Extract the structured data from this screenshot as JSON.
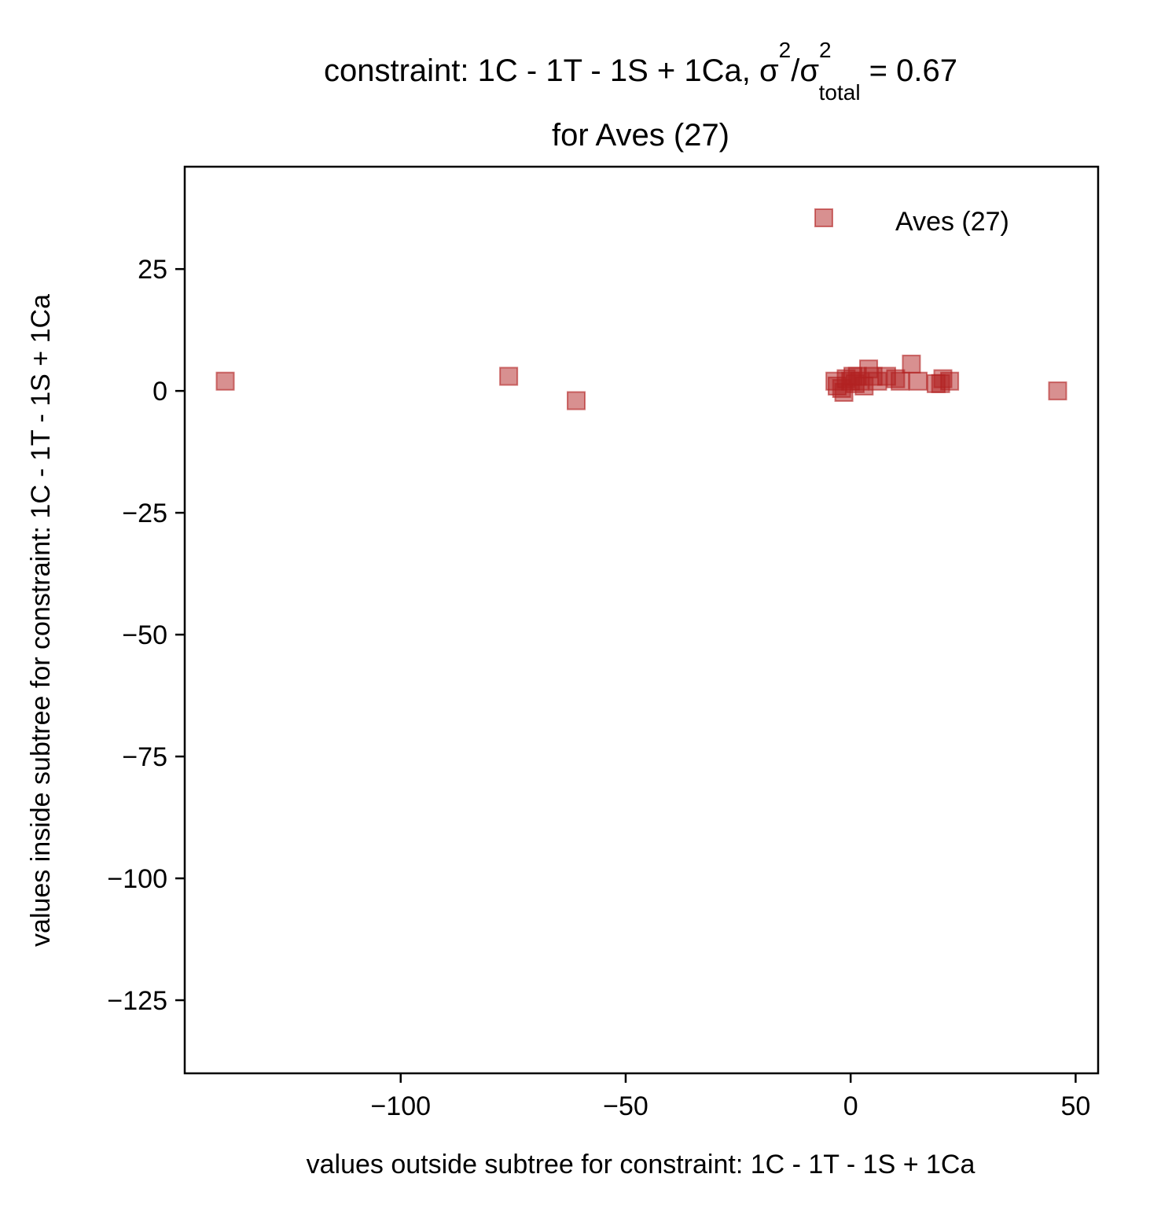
{
  "chart_data": {
    "type": "scatter",
    "title": {
      "prefix": "constraint: 1C - 1T - 1S + 1Ca, σ",
      "sup1": "2",
      "mid": "/σ",
      "sup2": "2",
      "sub": "total",
      "suffix": " =  0.67",
      "line2": "for Aves (27)"
    },
    "xlabel": "values outside subtree for constraint: 1C - 1T - 1S + 1Ca",
    "ylabel": "values inside subtree for constraint: 1C - 1T - 1S + 1Ca",
    "xlim": [
      -148,
      55
    ],
    "ylim": [
      -140,
      46
    ],
    "xticks": [
      -100,
      -50,
      0,
      50
    ],
    "yticks": [
      25,
      0,
      -25,
      -50,
      -75,
      -100,
      -125
    ],
    "xtick_labels": [
      "−100",
      "−50",
      "0",
      "50"
    ],
    "ytick_labels": [
      "25",
      "0",
      "−25",
      "−50",
      "−75",
      "−100",
      "−125"
    ],
    "grid": false,
    "legend_position": "top-right",
    "series": [
      {
        "name": "Aves (27)",
        "marker": "square",
        "color": "#b22222",
        "points": [
          [
            -139,
            2
          ],
          [
            -76,
            3
          ],
          [
            -61,
            -2
          ],
          [
            -3.5,
            2
          ],
          [
            -3,
            1
          ],
          [
            -2,
            0.5
          ],
          [
            -1.5,
            -0.3
          ],
          [
            -1,
            2.5
          ],
          [
            0,
            2
          ],
          [
            0.5,
            3
          ],
          [
            1,
            1.5
          ],
          [
            2,
            2
          ],
          [
            3,
            1
          ],
          [
            4,
            4.5
          ],
          [
            5,
            3
          ],
          [
            6,
            2
          ],
          [
            8,
            3
          ],
          [
            10,
            2.5
          ],
          [
            11,
            2
          ],
          [
            13.5,
            5.5
          ],
          [
            15,
            2
          ],
          [
            19,
            1.5
          ],
          [
            20,
            1.5
          ],
          [
            20.5,
            2.5
          ],
          [
            22,
            2
          ],
          [
            46,
            0
          ],
          [
            1.5,
            3
          ]
        ]
      }
    ]
  }
}
